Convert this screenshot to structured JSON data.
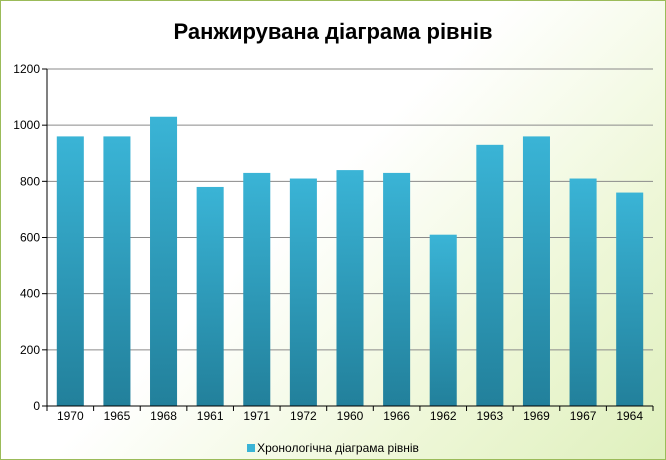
{
  "chart_data": {
    "type": "bar",
    "title": "Ранжирувана діаграма рівнів",
    "categories": [
      "1970",
      "1965",
      "1968",
      "1961",
      "1971",
      "1972",
      "1960",
      "1966",
      "1962",
      "1963",
      "1969",
      "1967",
      "1964"
    ],
    "series": [
      {
        "name": "Хронологічна діаграма рівнів",
        "values": [
          960,
          960,
          1030,
          780,
          830,
          810,
          840,
          830,
          610,
          930,
          960,
          810,
          760
        ]
      }
    ],
    "ylim": [
      0,
      1200
    ],
    "yticks": [
      "0",
      "200",
      "400",
      "600",
      "800",
      "1000",
      "1200"
    ],
    "grid": true,
    "legend": "bottom",
    "colors": {
      "bar_top": "#3ab4d6",
      "bar_bottom": "#22809b"
    }
  }
}
